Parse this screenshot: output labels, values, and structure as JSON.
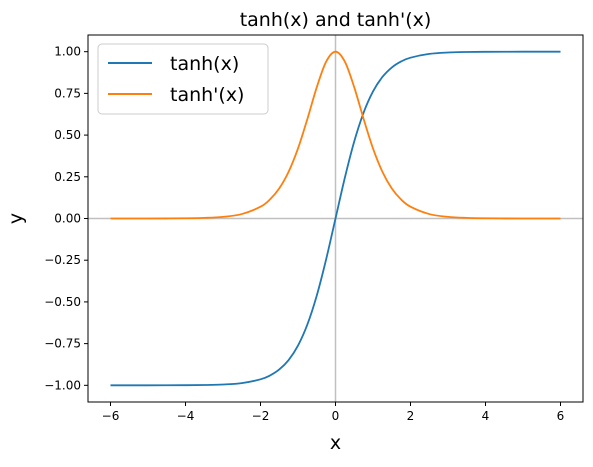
{
  "chart_data": {
    "type": "line",
    "title": "tanh(x) and tanh'(x)",
    "xlabel": "x",
    "ylabel": "y",
    "xlim": [
      -6.6,
      6.6
    ],
    "ylim": [
      -1.1,
      1.1
    ],
    "xticks": [
      -6,
      -4,
      -2,
      0,
      2,
      4,
      6
    ],
    "xtick_labels": [
      "−6",
      "−4",
      "−2",
      "0",
      "2",
      "4",
      "6"
    ],
    "yticks": [
      -1.0,
      -0.75,
      -0.5,
      -0.25,
      0.0,
      0.25,
      0.5,
      0.75,
      1.0
    ],
    "ytick_labels": [
      "−1.00",
      "−0.75",
      "−0.50",
      "−0.25",
      "0.00",
      "0.25",
      "0.50",
      "0.75",
      "1.00"
    ],
    "grid": false,
    "legend_position": "top-left",
    "reference_lines": {
      "x": 0,
      "y": 0,
      "color": "#c0c0c0"
    },
    "series": [
      {
        "name": "tanh(x)",
        "color": "#1f77b4",
        "x": [
          -6,
          -5.5,
          -5,
          -4.5,
          -4,
          -3.5,
          -3,
          -2.5,
          -2,
          -1.75,
          -1.5,
          -1.25,
          -1,
          -0.75,
          -0.5,
          -0.25,
          0,
          0.25,
          0.5,
          0.75,
          1,
          1.25,
          1.5,
          1.75,
          2,
          2.5,
          3,
          3.5,
          4,
          4.5,
          5,
          5.5,
          6
        ],
        "y": [
          -1.0,
          -1.0,
          -0.9999,
          -0.9998,
          -0.9993,
          -0.9982,
          -0.9951,
          -0.9866,
          -0.964,
          -0.9414,
          -0.9051,
          -0.8483,
          -0.7616,
          -0.6351,
          -0.4621,
          -0.2449,
          0.0,
          0.2449,
          0.4621,
          0.6351,
          0.7616,
          0.8483,
          0.9051,
          0.9414,
          0.964,
          0.9866,
          0.9951,
          0.9982,
          0.9993,
          0.9998,
          0.9999,
          1.0,
          1.0
        ]
      },
      {
        "name": "tanh'(x)",
        "color": "#ff7f0e",
        "x": [
          -6,
          -5.5,
          -5,
          -4.5,
          -4,
          -3.5,
          -3,
          -2.5,
          -2,
          -1.75,
          -1.5,
          -1.25,
          -1,
          -0.75,
          -0.5,
          -0.25,
          0,
          0.25,
          0.5,
          0.75,
          1,
          1.25,
          1.5,
          1.75,
          2,
          2.5,
          3,
          3.5,
          4,
          4.5,
          5,
          5.5,
          6
        ],
        "y": [
          0.0,
          0.0001,
          0.0002,
          0.0005,
          0.0013,
          0.0036,
          0.0099,
          0.0266,
          0.0707,
          0.1138,
          0.1807,
          0.2805,
          0.42,
          0.5966,
          0.7864,
          0.94,
          1.0,
          0.94,
          0.7864,
          0.5966,
          0.42,
          0.2805,
          0.1807,
          0.1138,
          0.0707,
          0.0266,
          0.0099,
          0.0036,
          0.0013,
          0.0005,
          0.0002,
          0.0001,
          0.0
        ]
      }
    ]
  }
}
